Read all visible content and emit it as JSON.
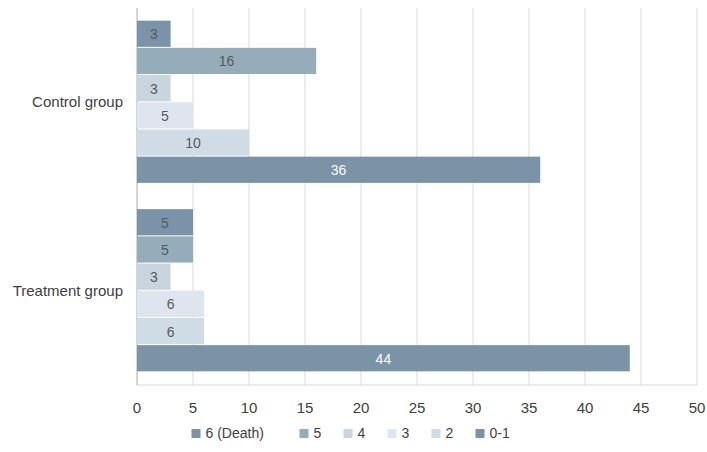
{
  "chart_data": {
    "type": "bar",
    "orientation": "horizontal",
    "data_labels": true,
    "grid": true,
    "legend": "bottom",
    "categories": [
      "Control group",
      "Treatment group"
    ],
    "series": [
      {
        "name": "6 (Death)",
        "color": "#7a93a8",
        "values": [
          3,
          5
        ]
      },
      {
        "name": "5",
        "color": "#94adb9",
        "values": [
          16,
          5
        ]
      },
      {
        "name": "4",
        "color": "#c8d4de",
        "values": [
          3,
          3
        ]
      },
      {
        "name": "3",
        "color": "#dfe5ef",
        "values": [
          5,
          6
        ]
      },
      {
        "name": "2",
        "color": "#cfdbe5",
        "values": [
          10,
          6
        ]
      },
      {
        "name": "0-1",
        "color": "#7b93a6",
        "values": [
          36,
          44
        ]
      }
    ],
    "xlim": [
      0,
      50
    ],
    "xticks": [
      0,
      5,
      10,
      15,
      20,
      25,
      30,
      35,
      40,
      45,
      50
    ]
  }
}
